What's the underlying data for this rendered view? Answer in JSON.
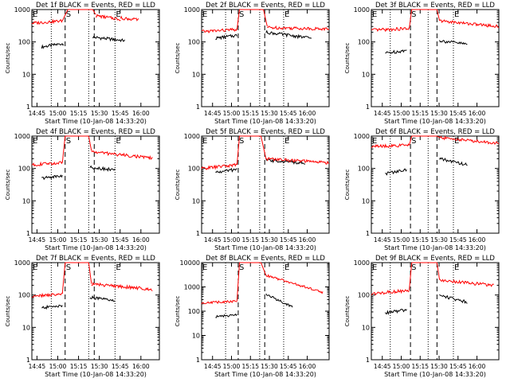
{
  "colors": {
    "events": "#000000",
    "lld": "#ff0000",
    "axis": "#000000",
    "background": "#ffffff"
  },
  "shared_axes": {
    "ylabel": "Counts/sec",
    "xlabel": "Start Time (10-Jan-08 14:33:20)",
    "y_scale": "log",
    "y_tick_labels": [
      "1",
      "10",
      "100",
      "1000"
    ],
    "y_tick_labels_large": [
      "1",
      "10",
      "100",
      "1000",
      "10000"
    ],
    "x_tick_labels_a": [
      "14:45",
      "15:00",
      "15:15",
      "15:30",
      "15:45",
      "16:00"
    ],
    "x_tick_labels_b": [
      "14:45",
      "15:00",
      "15:15",
      "15:30",
      "15:45",
      "16:00"
    ],
    "region_markers": [
      "E",
      "S",
      "E"
    ]
  },
  "chart_data": [
    {
      "type": "line",
      "title": "Det 1f  BLACK = Events, RED = LLD",
      "ylim": [
        1,
        1000
      ],
      "xlim_min": [
        8,
        100
      ],
      "x_ticks_min": [
        11.67,
        26.67,
        41.67,
        56.67,
        71.67,
        86.67
      ],
      "dotted_x_min": [
        22,
        49,
        68
      ],
      "dashed_x_min": [
        32,
        53
      ],
      "series": [
        {
          "name": "Events",
          "segments": [
            {
              "x_min": [
                15,
                31
              ],
              "y": [
                70,
                90
              ]
            },
            {
              "x_min": [
                52,
                75
              ],
              "y": [
                140,
                110
              ]
            }
          ]
        },
        {
          "name": "LLD",
          "segments": [
            {
              "x_min": [
                8,
                30
              ],
              "y": [
                380,
                450
              ]
            },
            {
              "x_min": [
                30,
                34
              ],
              "y": [
                450,
                1000
              ]
            },
            {
              "x_min": [
                34,
                52
              ],
              "y": [
                1000,
                1000
              ]
            },
            {
              "x_min": [
                52,
                54
              ],
              "y": [
                1000,
                700
              ]
            },
            {
              "x_min": [
                54,
                72
              ],
              "y": [
                650,
                500
              ]
            },
            {
              "x_min": [
                72,
                85
              ],
              "y": [
                550,
                480
              ]
            }
          ]
        }
      ]
    },
    {
      "type": "line",
      "title": "Det 2f  BLACK = Events, RED = LLD",
      "ylim": [
        1,
        1000
      ],
      "xlim_min": [
        3,
        104
      ],
      "x_ticks_min": [
        11.67,
        26.67,
        41.67,
        56.67,
        71.67,
        86.67
      ],
      "dotted_x_min": [
        22,
        49,
        68
      ],
      "dashed_x_min": [
        32,
        53
      ],
      "series": [
        {
          "name": "Events",
          "segments": [
            {
              "x_min": [
                14,
                31
              ],
              "y": [
                130,
                160
              ]
            },
            {
              "x_min": [
                54,
                90
              ],
              "y": [
                200,
                130
              ]
            }
          ]
        },
        {
          "name": "LLD",
          "segments": [
            {
              "x_min": [
                3,
                31
              ],
              "y": [
                210,
                240
              ]
            },
            {
              "x_min": [
                31,
                33
              ],
              "y": [
                240,
                1000
              ]
            },
            {
              "x_min": [
                33,
                52
              ],
              "y": [
                1000,
                1000
              ]
            },
            {
              "x_min": [
                52,
                55
              ],
              "y": [
                1000,
                300
              ]
            },
            {
              "x_min": [
                55,
                104
              ],
              "y": [
                280,
                250
              ]
            }
          ]
        }
      ]
    },
    {
      "type": "line",
      "title": "Det 3f  BLACK = Events, RED = LLD",
      "ylim": [
        1,
        1000
      ],
      "xlim_min": [
        3,
        104
      ],
      "x_ticks_min": [
        11.67,
        26.67,
        41.67,
        56.67,
        71.67,
        86.67
      ],
      "dotted_x_min": [
        18,
        48,
        68
      ],
      "dashed_x_min": [
        34,
        55
      ],
      "series": [
        {
          "name": "Events",
          "segments": [
            {
              "x_min": [
                14,
                31
              ],
              "y": [
                45,
                55
              ]
            },
            {
              "x_min": [
                57,
                79
              ],
              "y": [
                110,
                85
              ]
            }
          ]
        },
        {
          "name": "LLD",
          "segments": [
            {
              "x_min": [
                3,
                33
              ],
              "y": [
                230,
                260
              ]
            },
            {
              "x_min": [
                33,
                35
              ],
              "y": [
                260,
                1000
              ]
            },
            {
              "x_min": [
                35,
                55
              ],
              "y": [
                1000,
                1000
              ]
            },
            {
              "x_min": [
                55,
                57
              ],
              "y": [
                1000,
                450
              ]
            },
            {
              "x_min": [
                57,
                104
              ],
              "y": [
                450,
                300
              ]
            }
          ]
        }
      ]
    },
    {
      "type": "line",
      "title": "Det 4f  BLACK = Events, RED = LLD",
      "ylim": [
        1,
        1000
      ],
      "xlim_min": [
        8,
        100
      ],
      "x_ticks_min": [
        11.67,
        26.67,
        41.67,
        56.67,
        71.67,
        86.67
      ],
      "dotted_x_min": [
        22,
        49,
        68
      ],
      "dashed_x_min": [
        32,
        53
      ],
      "series": [
        {
          "name": "Events",
          "segments": [
            {
              "x_min": [
                15,
                30
              ],
              "y": [
                50,
                60
              ]
            },
            {
              "x_min": [
                50,
                68
              ],
              "y": [
                110,
                90
              ]
            }
          ]
        },
        {
          "name": "LLD",
          "segments": [
            {
              "x_min": [
                8,
                30
              ],
              "y": [
                130,
                150
              ]
            },
            {
              "x_min": [
                30,
                32
              ],
              "y": [
                150,
                1000
              ]
            },
            {
              "x_min": [
                32,
                49
              ],
              "y": [
                1000,
                1000
              ]
            },
            {
              "x_min": [
                49,
                51
              ],
              "y": [
                1000,
                350
              ]
            },
            {
              "x_min": [
                51,
                95
              ],
              "y": [
                330,
                210
              ]
            }
          ]
        }
      ]
    },
    {
      "type": "line",
      "title": "Det 5f  BLACK = Events, RED = LLD",
      "ylim": [
        1,
        1000
      ],
      "xlim_min": [
        3,
        104
      ],
      "x_ticks_min": [
        11.67,
        26.67,
        41.67,
        56.67,
        71.67,
        86.67
      ],
      "dotted_x_min": [
        22,
        49,
        68
      ],
      "dashed_x_min": [
        32,
        53
      ],
      "series": [
        {
          "name": "Events",
          "segments": [
            {
              "x_min": [
                14,
                31
              ],
              "y": [
                75,
                95
              ]
            },
            {
              "x_min": [
                54,
                85
              ],
              "y": [
                180,
                150
              ]
            }
          ]
        },
        {
          "name": "LLD",
          "segments": [
            {
              "x_min": [
                3,
                31
              ],
              "y": [
                100,
                130
              ]
            },
            {
              "x_min": [
                31,
                33
              ],
              "y": [
                130,
                1000
              ]
            },
            {
              "x_min": [
                33,
                50
              ],
              "y": [
                1000,
                1000
              ]
            },
            {
              "x_min": [
                50,
                54
              ],
              "y": [
                1000,
                200
              ]
            },
            {
              "x_min": [
                54,
                104
              ],
              "y": [
                200,
                150
              ]
            }
          ]
        }
      ]
    },
    {
      "type": "line",
      "title": "Det 6f  BLACK = Events, RED = LLD",
      "ylim": [
        1,
        1000
      ],
      "xlim_min": [
        3,
        104
      ],
      "x_ticks_min": [
        11.67,
        26.67,
        41.67,
        56.67,
        71.67,
        86.67
      ],
      "dotted_x_min": [
        18,
        48,
        68
      ],
      "dashed_x_min": [
        34,
        55
      ],
      "series": [
        {
          "name": "Events",
          "segments": [
            {
              "x_min": [
                14,
                31
              ],
              "y": [
                70,
                90
              ]
            },
            {
              "x_min": [
                57,
                79
              ],
              "y": [
                200,
                130
              ]
            }
          ]
        },
        {
          "name": "LLD",
          "segments": [
            {
              "x_min": [
                3,
                33
              ],
              "y": [
                480,
                520
              ]
            },
            {
              "x_min": [
                33,
                35
              ],
              "y": [
                520,
                1000
              ]
            },
            {
              "x_min": [
                35,
                55
              ],
              "y": [
                1000,
                1000
              ]
            },
            {
              "x_min": [
                55,
                57
              ],
              "y": [
                1000,
                900
              ]
            },
            {
              "x_min": [
                57,
                104
              ],
              "y": [
                900,
                600
              ]
            }
          ]
        }
      ]
    },
    {
      "type": "line",
      "title": "Det 7f  BLACK = Events, RED = LLD",
      "ylim": [
        1,
        1000
      ],
      "xlim_min": [
        8,
        100
      ],
      "x_ticks_min": [
        11.67,
        26.67,
        41.67,
        56.67,
        71.67,
        86.67
      ],
      "dotted_x_min": [
        22,
        49,
        68
      ],
      "dashed_x_min": [
        32,
        53
      ],
      "series": [
        {
          "name": "Events",
          "segments": [
            {
              "x_min": [
                15,
                30
              ],
              "y": [
                40,
                48
              ]
            },
            {
              "x_min": [
                50,
                68
              ],
              "y": [
                85,
                65
              ]
            }
          ]
        },
        {
          "name": "LLD",
          "segments": [
            {
              "x_min": [
                8,
                30
              ],
              "y": [
                90,
                110
              ]
            },
            {
              "x_min": [
                30,
                32
              ],
              "y": [
                110,
                1000
              ]
            },
            {
              "x_min": [
                32,
                49
              ],
              "y": [
                1000,
                1000
              ]
            },
            {
              "x_min": [
                49,
                51
              ],
              "y": [
                1000,
                220
              ]
            },
            {
              "x_min": [
                51,
                95
              ],
              "y": [
                220,
                150
              ]
            }
          ]
        }
      ]
    },
    {
      "type": "line",
      "title": "Det 8f  BLACK = Events, RED = LLD",
      "ylim": [
        1,
        10000
      ],
      "xlim_min": [
        3,
        104
      ],
      "x_ticks_min": [
        11.67,
        26.67,
        41.67,
        56.67,
        71.67,
        86.67
      ],
      "dotted_x_min": [
        22,
        49,
        68
      ],
      "dashed_x_min": [
        32,
        53
      ],
      "series": [
        {
          "name": "Events",
          "segments": [
            {
              "x_min": [
                14,
                31
              ],
              "y": [
                60,
                70
              ]
            },
            {
              "x_min": [
                54,
                75
              ],
              "y": [
                500,
                150
              ]
            }
          ]
        },
        {
          "name": "LLD",
          "segments": [
            {
              "x_min": [
                3,
                31
              ],
              "y": [
                220,
                260
              ]
            },
            {
              "x_min": [
                31,
                33
              ],
              "y": [
                260,
                10000
              ]
            },
            {
              "x_min": [
                33,
                50
              ],
              "y": [
                10000,
                10000
              ]
            },
            {
              "x_min": [
                50,
                54
              ],
              "y": [
                10000,
                3000
              ]
            },
            {
              "x_min": [
                54,
                99
              ],
              "y": [
                3000,
                600
              ]
            }
          ]
        }
      ]
    },
    {
      "type": "line",
      "title": "Det 9f  BLACK = Events, RED = LLD",
      "ylim": [
        1,
        1000
      ],
      "xlim_min": [
        3,
        104
      ],
      "x_ticks_min": [
        11.67,
        26.67,
        41.67,
        56.67,
        71.67,
        86.67
      ],
      "dotted_x_min": [
        18,
        48,
        68
      ],
      "dashed_x_min": [
        34,
        55
      ],
      "series": [
        {
          "name": "Events",
          "segments": [
            {
              "x_min": [
                14,
                31
              ],
              "y": [
                28,
                35
              ]
            },
            {
              "x_min": [
                57,
                79
              ],
              "y": [
                100,
                60
              ]
            }
          ]
        },
        {
          "name": "LLD",
          "segments": [
            {
              "x_min": [
                3,
                33
              ],
              "y": [
                110,
                140
              ]
            },
            {
              "x_min": [
                33,
                35
              ],
              "y": [
                140,
                1000
              ]
            },
            {
              "x_min": [
                35,
                55
              ],
              "y": [
                1000,
                1000
              ]
            },
            {
              "x_min": [
                55,
                57
              ],
              "y": [
                1000,
                300
              ]
            },
            {
              "x_min": [
                57,
                100
              ],
              "y": [
                290,
                200
              ]
            }
          ]
        }
      ]
    }
  ]
}
